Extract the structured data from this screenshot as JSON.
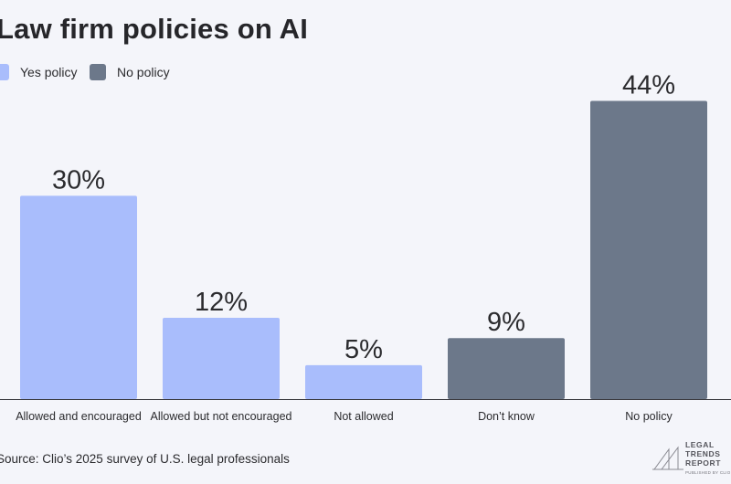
{
  "chart_data": {
    "type": "bar",
    "title": "Law firm policies on AI",
    "categories": [
      "Allowed and encouraged",
      "Allowed but not encouraged",
      "Not allowed",
      "Don’t know",
      "No policy"
    ],
    "values": [
      30,
      12,
      5,
      9,
      44
    ],
    "value_labels": [
      "30%",
      "12%",
      "5%",
      "9%",
      "44%"
    ],
    "groups": [
      "yes",
      "yes",
      "yes",
      "no",
      "no"
    ],
    "legend": [
      {
        "key": "yes",
        "label": "Yes policy",
        "color": "#a9bdfc"
      },
      {
        "key": "no",
        "label": "No policy",
        "color": "#6c788a"
      }
    ],
    "xlabel": "",
    "ylabel": "",
    "ylim": [
      0,
      50
    ],
    "grid": false,
    "legend_position": "top-left"
  },
  "source": "Source: Clio’s 2025 survey of U.S. legal professionals",
  "logo": {
    "lines": [
      "LEGAL",
      "TRENDS",
      "REPORT"
    ],
    "sub": "PUBLISHED BY CLIO"
  }
}
